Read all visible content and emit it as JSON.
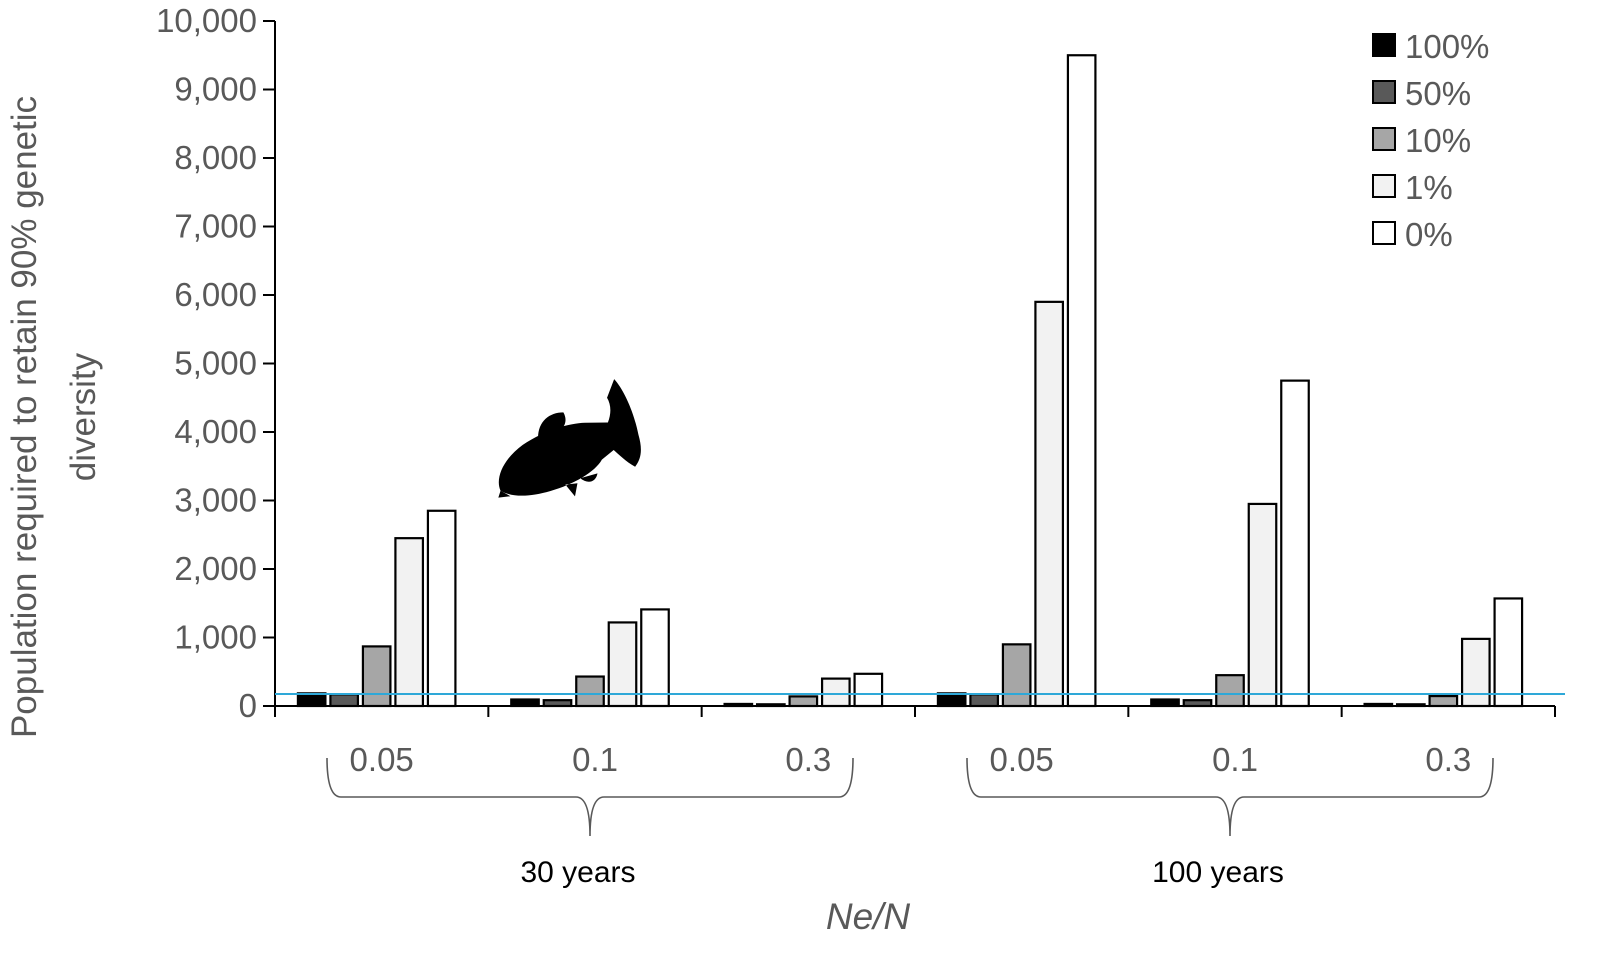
{
  "chart_data": {
    "type": "bar",
    "ylabel_line1": "Population required to retain 90% genetic",
    "ylabel_line2": "diversity",
    "xlabel": "Ne/N",
    "ylim": [
      0,
      10000
    ],
    "yticks": [
      0,
      1000,
      2000,
      3000,
      4000,
      5000,
      6000,
      7000,
      8000,
      9000,
      10000
    ],
    "ytick_labels": [
      "0",
      "1,000",
      "2,000",
      "3,000",
      "4,000",
      "5,000",
      "6,000",
      "7,000",
      "8,000",
      "9,000",
      "10,000"
    ],
    "categories": [
      "0.05",
      "0.1",
      "0.3",
      "0.05",
      "0.1",
      "0.3"
    ],
    "groups": [
      {
        "label": "30 years",
        "categories": [
          0,
          1,
          2
        ]
      },
      {
        "label": "100 years",
        "categories": [
          3,
          4,
          5
        ]
      }
    ],
    "series": [
      {
        "name": "100%",
        "color": "#000000",
        "values": [
          185,
          95,
          30,
          185,
          95,
          30
        ]
      },
      {
        "name": "50%",
        "color": "#595959",
        "values": [
          170,
          85,
          25,
          170,
          85,
          25
        ]
      },
      {
        "name": "10%",
        "color": "#a6a6a6",
        "values": [
          870,
          430,
          140,
          900,
          450,
          145
        ]
      },
      {
        "name": "1%",
        "color": "#f2f2f2",
        "values": [
          2450,
          1220,
          400,
          5900,
          2950,
          980
        ]
      },
      {
        "name": "0%",
        "color": "#ffffff",
        "values": [
          2850,
          1410,
          470,
          9500,
          4750,
          1570
        ]
      }
    ],
    "reference_line": {
      "value": 175,
      "color": "#2ea8d8"
    },
    "legend_position": "top-right",
    "icons": [
      "fish-silhouette-icon"
    ]
  }
}
